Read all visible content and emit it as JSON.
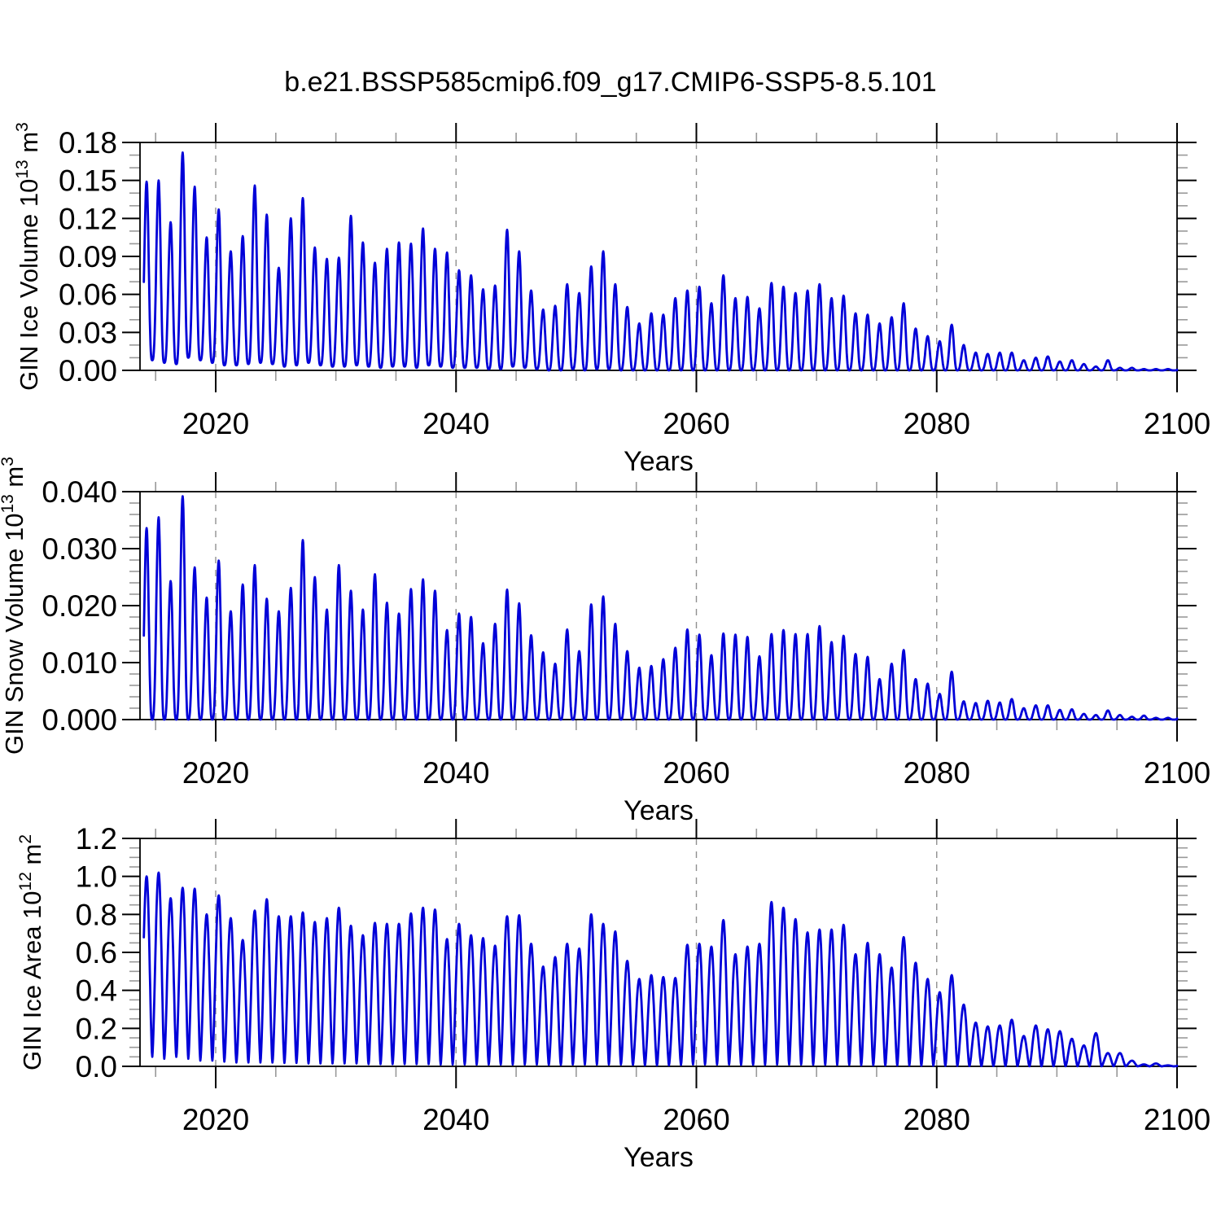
{
  "title": "b.e21.BSSP585cmip6.f09_g17.CMIP6-SSP5-8.5.101",
  "style": {
    "line_color": "#0000d8",
    "axis_color": "#000000",
    "grid_color": "#909090",
    "minor_tick_color": "#999999",
    "background": "#ffffff",
    "text_color": "#000000"
  },
  "chart_data": [
    {
      "type": "line",
      "panel": "top",
      "ylabel": {
        "text": "GIN Ice Volume",
        "scale": "10",
        "scale_exp": "13",
        "unit": "m",
        "unit_exp": "3"
      },
      "xlabel": "Years",
      "xlim": [
        2013.7,
        2100
      ],
      "ylim": [
        0,
        0.18
      ],
      "x_ticks": {
        "values": [
          2020,
          2040,
          2060,
          2080,
          2100
        ],
        "labels": [
          "2020",
          "2040",
          "2060",
          "2080",
          "2100"
        ],
        "minor_step": 5
      },
      "y_ticks": {
        "values": [
          0,
          0.03,
          0.06,
          0.09,
          0.12,
          0.15,
          0.18
        ],
        "labels": [
          "0.00",
          "0.03",
          "0.06",
          "0.09",
          "0.12",
          "0.15",
          "0.18"
        ],
        "minor_step": 0.01
      },
      "grid_x": [
        2020,
        2040,
        2060,
        2080
      ],
      "grid_on": true,
      "legend": "none",
      "seasonality": {
        "peak_month": "April",
        "min_month": "September",
        "cycles_per_year": 1
      },
      "years": [
        2014,
        2015,
        2016,
        2017,
        2018,
        2019,
        2020,
        2021,
        2022,
        2023,
        2024,
        2025,
        2026,
        2027,
        2028,
        2029,
        2030,
        2031,
        2032,
        2033,
        2034,
        2035,
        2036,
        2037,
        2038,
        2039,
        2040,
        2041,
        2042,
        2043,
        2044,
        2045,
        2046,
        2047,
        2048,
        2049,
        2050,
        2051,
        2052,
        2053,
        2054,
        2055,
        2056,
        2057,
        2058,
        2059,
        2060,
        2061,
        2062,
        2063,
        2064,
        2065,
        2066,
        2067,
        2068,
        2069,
        2070,
        2071,
        2072,
        2073,
        2074,
        2075,
        2076,
        2077,
        2078,
        2079,
        2080,
        2081,
        2082,
        2083,
        2084,
        2085,
        2086,
        2087,
        2088,
        2089,
        2090,
        2091,
        2092,
        2093,
        2094,
        2095,
        2096,
        2097,
        2098,
        2099,
        2100
      ],
      "annual_max": [
        0.149,
        0.15,
        0.117,
        0.172,
        0.145,
        0.105,
        0.127,
        0.094,
        0.106,
        0.146,
        0.123,
        0.081,
        0.12,
        0.136,
        0.097,
        0.088,
        0.089,
        0.122,
        0.101,
        0.085,
        0.096,
        0.101,
        0.1,
        0.112,
        0.096,
        0.093,
        0.079,
        0.075,
        0.064,
        0.067,
        0.111,
        0.094,
        0.063,
        0.048,
        0.051,
        0.068,
        0.061,
        0.082,
        0.094,
        0.068,
        0.05,
        0.037,
        0.045,
        0.044,
        0.057,
        0.063,
        0.066,
        0.053,
        0.075,
        0.057,
        0.058,
        0.049,
        0.069,
        0.066,
        0.061,
        0.063,
        0.068,
        0.057,
        0.059,
        0.045,
        0.044,
        0.037,
        0.042,
        0.053,
        0.033,
        0.027,
        0.023,
        0.036,
        0.02,
        0.014,
        0.013,
        0.014,
        0.014,
        0.008,
        0.01,
        0.011,
        0.007,
        0.008,
        0.005,
        0.003,
        0.008,
        0.002,
        0.002,
        0.001,
        0.001,
        0.001,
        0.0005
      ],
      "annual_min": [
        0.008,
        0.006,
        0.005,
        0.01,
        0.008,
        0.006,
        0.004,
        0.004,
        0.005,
        0.006,
        0.005,
        0.003,
        0.004,
        0.006,
        0.004,
        0.003,
        0.003,
        0.004,
        0.003,
        0.002,
        0.003,
        0.003,
        0.002,
        0.004,
        0.003,
        0.002,
        0.002,
        0.002,
        0.001,
        0.001,
        0.003,
        0.002,
        0.001,
        0,
        0,
        0.001,
        0,
        0.001,
        0.001,
        0,
        0,
        0,
        0,
        0,
        0,
        0,
        0,
        0,
        0,
        0,
        0,
        0,
        0,
        0,
        0,
        0,
        0,
        0,
        0,
        0,
        0,
        0,
        0,
        0,
        0,
        0,
        0,
        0,
        0,
        0,
        0,
        0,
        0,
        0,
        0,
        0,
        0,
        0,
        0,
        0,
        0,
        0,
        0,
        0,
        0,
        0,
        0
      ]
    },
    {
      "type": "line",
      "panel": "middle",
      "ylabel": {
        "text": "GIN Snow Volume",
        "scale": "10",
        "scale_exp": "13",
        "unit": "m",
        "unit_exp": "3"
      },
      "xlabel": "Years",
      "xlim": [
        2013.7,
        2100
      ],
      "ylim": [
        0,
        0.04
      ],
      "x_ticks": {
        "values": [
          2020,
          2040,
          2060,
          2080,
          2100
        ],
        "labels": [
          "2020",
          "2040",
          "2060",
          "2080",
          "2100"
        ],
        "minor_step": 5
      },
      "y_ticks": {
        "values": [
          0,
          0.01,
          0.02,
          0.03,
          0.04
        ],
        "labels": [
          "0.000",
          "0.010",
          "0.020",
          "0.030",
          "0.040"
        ],
        "minor_step": 0.002
      },
      "grid_x": [
        2020,
        2040,
        2060,
        2080
      ],
      "grid_on": true,
      "legend": "none",
      "seasonality": {
        "peak_month": "April",
        "min_month": "September",
        "cycles_per_year": 1
      },
      "years": [
        2014,
        2015,
        2016,
        2017,
        2018,
        2019,
        2020,
        2021,
        2022,
        2023,
        2024,
        2025,
        2026,
        2027,
        2028,
        2029,
        2030,
        2031,
        2032,
        2033,
        2034,
        2035,
        2036,
        2037,
        2038,
        2039,
        2040,
        2041,
        2042,
        2043,
        2044,
        2045,
        2046,
        2047,
        2048,
        2049,
        2050,
        2051,
        2052,
        2053,
        2054,
        2055,
        2056,
        2057,
        2058,
        2059,
        2060,
        2061,
        2062,
        2063,
        2064,
        2065,
        2066,
        2067,
        2068,
        2069,
        2070,
        2071,
        2072,
        2073,
        2074,
        2075,
        2076,
        2077,
        2078,
        2079,
        2080,
        2081,
        2082,
        2083,
        2084,
        2085,
        2086,
        2087,
        2088,
        2089,
        2090,
        2091,
        2092,
        2093,
        2094,
        2095,
        2096,
        2097,
        2098,
        2099,
        2100
      ],
      "annual_max": [
        0.0336,
        0.0355,
        0.0243,
        0.0392,
        0.0267,
        0.0214,
        0.0279,
        0.019,
        0.0237,
        0.0271,
        0.0212,
        0.019,
        0.0231,
        0.0315,
        0.025,
        0.0193,
        0.0271,
        0.0226,
        0.0193,
        0.0255,
        0.0205,
        0.0186,
        0.0229,
        0.0246,
        0.0226,
        0.0157,
        0.0186,
        0.018,
        0.0134,
        0.0168,
        0.0228,
        0.0204,
        0.0148,
        0.0118,
        0.0098,
        0.0158,
        0.012,
        0.0202,
        0.0216,
        0.0168,
        0.012,
        0.0091,
        0.0094,
        0.0106,
        0.0126,
        0.0158,
        0.0149,
        0.0113,
        0.0151,
        0.0149,
        0.0145,
        0.0111,
        0.015,
        0.0157,
        0.015,
        0.015,
        0.0164,
        0.0136,
        0.0147,
        0.0115,
        0.011,
        0.0071,
        0.0098,
        0.0122,
        0.0071,
        0.0063,
        0.0045,
        0.0084,
        0.0032,
        0.0029,
        0.0033,
        0.003,
        0.0036,
        0.002,
        0.0025,
        0.0025,
        0.0017,
        0.0018,
        0.001,
        0.0008,
        0.0016,
        0.0008,
        0.0005,
        0.0007,
        0.0003,
        0.0003,
        0.0002
      ],
      "annual_min": [
        0,
        0,
        0,
        0,
        0,
        0,
        0,
        0,
        0,
        0,
        0,
        0,
        0,
        0,
        0,
        0,
        0,
        0,
        0,
        0,
        0,
        0,
        0,
        0,
        0,
        0,
        0,
        0,
        0,
        0,
        0,
        0,
        0,
        0,
        0,
        0,
        0,
        0,
        0,
        0,
        0,
        0,
        0,
        0,
        0,
        0,
        0,
        0,
        0,
        0,
        0,
        0,
        0,
        0,
        0,
        0,
        0,
        0,
        0,
        0,
        0,
        0,
        0,
        0,
        0,
        0,
        0,
        0,
        0,
        0,
        0,
        0,
        0,
        0,
        0,
        0,
        0,
        0,
        0,
        0,
        0,
        0,
        0,
        0,
        0,
        0,
        0
      ]
    },
    {
      "type": "line",
      "panel": "bottom",
      "ylabel": {
        "text": "GIN Ice Area",
        "scale": "10",
        "scale_exp": "12",
        "unit": "m",
        "unit_exp": "2"
      },
      "xlabel": "Years",
      "xlim": [
        2013.7,
        2100
      ],
      "ylim": [
        0,
        1.2
      ],
      "x_ticks": {
        "values": [
          2020,
          2040,
          2060,
          2080,
          2100
        ],
        "labels": [
          "2020",
          "2040",
          "2060",
          "2080",
          "2100"
        ],
        "minor_step": 5
      },
      "y_ticks": {
        "values": [
          0,
          0.2,
          0.4,
          0.6,
          0.8,
          1.0,
          1.2
        ],
        "labels": [
          "0.0",
          "0.2",
          "0.4",
          "0.6",
          "0.8",
          "1.0",
          "1.2"
        ],
        "minor_step": 0.05
      },
      "grid_x": [
        2020,
        2040,
        2060,
        2080
      ],
      "grid_on": true,
      "legend": "none",
      "seasonality": {
        "peak_month": "March",
        "min_month": "September",
        "cycles_per_year": 1
      },
      "years": [
        2014,
        2015,
        2016,
        2017,
        2018,
        2019,
        2020,
        2021,
        2022,
        2023,
        2024,
        2025,
        2026,
        2027,
        2028,
        2029,
        2030,
        2031,
        2032,
        2033,
        2034,
        2035,
        2036,
        2037,
        2038,
        2039,
        2040,
        2041,
        2042,
        2043,
        2044,
        2045,
        2046,
        2047,
        2048,
        2049,
        2050,
        2051,
        2052,
        2053,
        2054,
        2055,
        2056,
        2057,
        2058,
        2059,
        2060,
        2061,
        2062,
        2063,
        2064,
        2065,
        2066,
        2067,
        2068,
        2069,
        2070,
        2071,
        2072,
        2073,
        2074,
        2075,
        2076,
        2077,
        2078,
        2079,
        2080,
        2081,
        2082,
        2083,
        2084,
        2085,
        2086,
        2087,
        2088,
        2089,
        2090,
        2091,
        2092,
        2093,
        2094,
        2095,
        2096,
        2097,
        2098,
        2099,
        2100
      ],
      "annual_max": [
        1.0,
        1.02,
        0.885,
        0.94,
        0.935,
        0.8,
        0.9,
        0.78,
        0.665,
        0.82,
        0.88,
        0.79,
        0.79,
        0.81,
        0.76,
        0.78,
        0.835,
        0.74,
        0.69,
        0.755,
        0.75,
        0.75,
        0.805,
        0.835,
        0.825,
        0.67,
        0.75,
        0.69,
        0.675,
        0.635,
        0.79,
        0.795,
        0.645,
        0.525,
        0.575,
        0.645,
        0.62,
        0.8,
        0.75,
        0.71,
        0.555,
        0.46,
        0.48,
        0.47,
        0.465,
        0.64,
        0.645,
        0.63,
        0.77,
        0.59,
        0.63,
        0.645,
        0.865,
        0.835,
        0.775,
        0.705,
        0.72,
        0.72,
        0.745,
        0.59,
        0.65,
        0.59,
        0.52,
        0.68,
        0.545,
        0.46,
        0.39,
        0.48,
        0.325,
        0.23,
        0.21,
        0.215,
        0.245,
        0.16,
        0.215,
        0.195,
        0.185,
        0.145,
        0.11,
        0.175,
        0.07,
        0.07,
        0.03,
        0.01,
        0.015,
        0.005,
        0.003
      ],
      "annual_min": [
        0.05,
        0.04,
        0.05,
        0.04,
        0.03,
        0.03,
        0.025,
        0.02,
        0.02,
        0.02,
        0.02,
        0.018,
        0.018,
        0.015,
        0.015,
        0.015,
        0.015,
        0.015,
        0.012,
        0.012,
        0.012,
        0.012,
        0.012,
        0.012,
        0.01,
        0.01,
        0.01,
        0.01,
        0.01,
        0.01,
        0.01,
        0.01,
        0.01,
        0.008,
        0.008,
        0.01,
        0.01,
        0.01,
        0.01,
        0.01,
        0.008,
        0.006,
        0.006,
        0.006,
        0.008,
        0.01,
        0.01,
        0.01,
        0.01,
        0.008,
        0.008,
        0.008,
        0.01,
        0.01,
        0.01,
        0.008,
        0.008,
        0.008,
        0.008,
        0.006,
        0.006,
        0.005,
        0.005,
        0.005,
        0.004,
        0.004,
        0.003,
        0.003,
        0.002,
        0.002,
        0.002,
        0.002,
        0.002,
        0.001,
        0.001,
        0.001,
        0.001,
        0.001,
        0.001,
        0.001,
        0.001,
        0.001,
        0,
        0,
        0,
        0,
        0
      ]
    }
  ]
}
